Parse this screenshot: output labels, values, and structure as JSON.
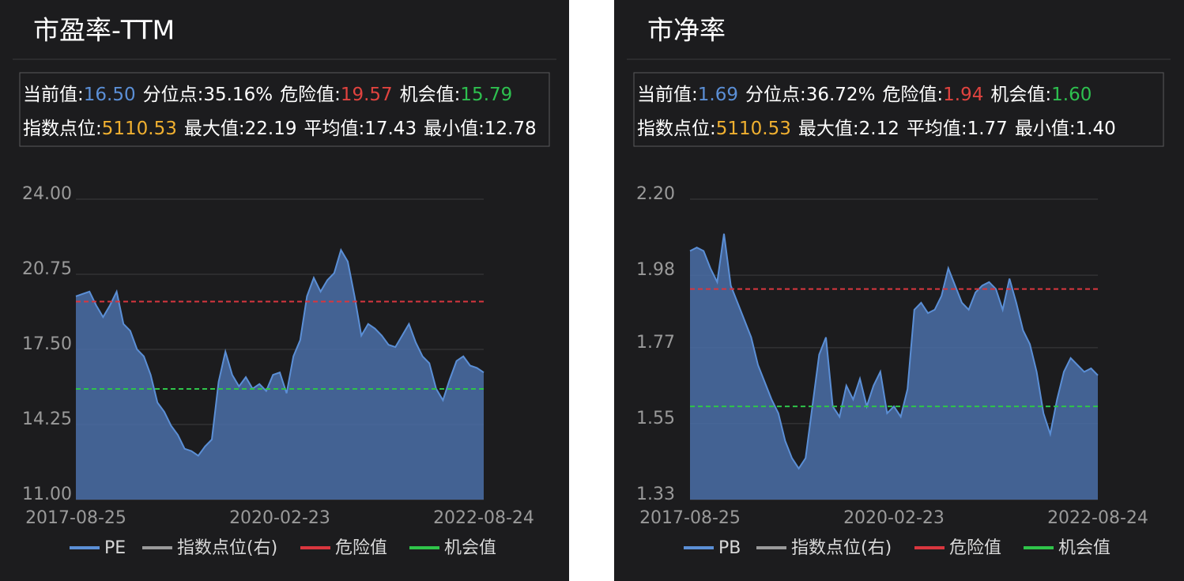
{
  "chart_data": [
    {
      "type": "area",
      "title": "市盈率-TTM",
      "stats": [
        [
          {
            "label": "当前值:",
            "value": 16.5,
            "value_label": "16.50",
            "color": "#5b8fd6"
          },
          {
            "label": "分位点:",
            "value": 35.16,
            "value_label": "35.16%"
          },
          {
            "label": "危险值:",
            "value": 19.57,
            "color": "#e0433f"
          },
          {
            "label": "机会值:",
            "value": 15.79,
            "color": "#2ec04f"
          }
        ],
        [
          {
            "label": "指数点位:",
            "value": 5110.53,
            "color": "#f0b030"
          },
          {
            "label": "最大值:",
            "value": 22.19
          },
          {
            "label": "平均值:",
            "value": 17.43
          },
          {
            "label": "最小值:",
            "value": 12.78
          }
        ]
      ],
      "categories": [
        "2017-08-25",
        null,
        null,
        null,
        null,
        null,
        null,
        null,
        null,
        null,
        null,
        null,
        null,
        null,
        null,
        null,
        null,
        null,
        null,
        null,
        null,
        null,
        null,
        null,
        null,
        null,
        null,
        null,
        null,
        null,
        "2020-02-23",
        null,
        null,
        null,
        null,
        null,
        null,
        null,
        null,
        null,
        null,
        null,
        null,
        null,
        null,
        null,
        null,
        null,
        null,
        null,
        null,
        null,
        null,
        null,
        null,
        null,
        null,
        null,
        null,
        null,
        "2022-08-24"
      ],
      "series": [
        {
          "name": "PE",
          "color": "#5b8fd6",
          "values": [
            19.8,
            19.9,
            20.0,
            19.4,
            18.9,
            19.4,
            20.0,
            18.6,
            18.3,
            17.5,
            17.2,
            16.4,
            15.2,
            14.8,
            14.2,
            13.8,
            13.2,
            13.1,
            12.9,
            13.3,
            13.6,
            16.1,
            17.4,
            16.4,
            15.9,
            16.3,
            15.8,
            16.0,
            15.7,
            16.4,
            16.5,
            15.6,
            17.2,
            17.9,
            19.8,
            20.6,
            20.0,
            20.5,
            20.8,
            21.8,
            21.3,
            19.8,
            18.1,
            18.6,
            18.4,
            18.1,
            17.7,
            17.6,
            18.1,
            18.6,
            17.8,
            17.2,
            16.9,
            15.8,
            15.3,
            16.2,
            17.0,
            17.2,
            16.8,
            16.7,
            16.5
          ]
        },
        {
          "name": "指数点位(右)",
          "color": "#9a9a9a"
        },
        {
          "name": "危险值",
          "color": "#d9363e"
        },
        {
          "name": "机会值",
          "color": "#2fc44a"
        }
      ],
      "ylim": [
        11,
        24
      ],
      "yticks": [
        {
          "value": 11,
          "label": "11.00"
        },
        {
          "value": 14.25,
          "label": "14.25"
        },
        {
          "value": 17.5,
          "label": "17.50"
        },
        {
          "value": 20.75,
          "label": "20.75"
        },
        {
          "value": 24,
          "label": "24.00"
        }
      ],
      "grid": true
    },
    {
      "type": "area",
      "title": "市净率",
      "stats": [
        [
          {
            "label": "当前值:",
            "value": 1.69,
            "color": "#5b8fd6"
          },
          {
            "label": "分位点:",
            "value": 36.72,
            "value_label": "36.72%"
          },
          {
            "label": "危险值:",
            "value": 1.94,
            "color": "#e0433f"
          },
          {
            "label": "机会值:",
            "value": 1.6,
            "value_label": "1.60",
            "color": "#2ec04f"
          }
        ],
        [
          {
            "label": "指数点位:",
            "value": 5110.53,
            "color": "#f0b030"
          },
          {
            "label": "最大值:",
            "value": 2.12
          },
          {
            "label": "平均值:",
            "value": 1.77
          },
          {
            "label": "最小值:",
            "value": 1.4,
            "value_label": "1.40"
          }
        ]
      ],
      "categories": [
        "2017-08-25",
        null,
        null,
        null,
        null,
        null,
        null,
        null,
        null,
        null,
        null,
        null,
        null,
        null,
        null,
        null,
        null,
        null,
        null,
        null,
        null,
        null,
        null,
        null,
        null,
        null,
        null,
        null,
        null,
        null,
        "2020-02-23",
        null,
        null,
        null,
        null,
        null,
        null,
        null,
        null,
        null,
        null,
        null,
        null,
        null,
        null,
        null,
        null,
        null,
        null,
        null,
        null,
        null,
        null,
        null,
        null,
        null,
        null,
        null,
        null,
        null,
        "2022-08-24"
      ],
      "series": [
        {
          "name": "PB",
          "color": "#5b8fd6",
          "values": [
            2.05,
            2.06,
            2.05,
            2.0,
            1.96,
            2.1,
            1.95,
            1.9,
            1.85,
            1.8,
            1.72,
            1.67,
            1.62,
            1.58,
            1.5,
            1.45,
            1.42,
            1.45,
            1.6,
            1.75,
            1.8,
            1.6,
            1.57,
            1.66,
            1.62,
            1.68,
            1.6,
            1.66,
            1.7,
            1.58,
            1.6,
            1.57,
            1.65,
            1.88,
            1.9,
            1.87,
            1.88,
            1.92,
            2.0,
            1.95,
            1.9,
            1.88,
            1.93,
            1.95,
            1.96,
            1.94,
            1.88,
            1.97,
            1.9,
            1.82,
            1.78,
            1.7,
            1.58,
            1.52,
            1.62,
            1.7,
            1.74,
            1.72,
            1.7,
            1.71,
            1.69
          ]
        },
        {
          "name": "指数点位(右)",
          "color": "#9a9a9a"
        },
        {
          "name": "危险值",
          "color": "#d9363e"
        },
        {
          "name": "机会值",
          "color": "#2fc44a"
        }
      ],
      "ylim": [
        1.33,
        2.2
      ],
      "yticks": [
        1.33,
        1.55,
        1.77,
        1.98,
        {
          "value": 2.2,
          "label": "2.20"
        }
      ],
      "grid": true
    }
  ]
}
